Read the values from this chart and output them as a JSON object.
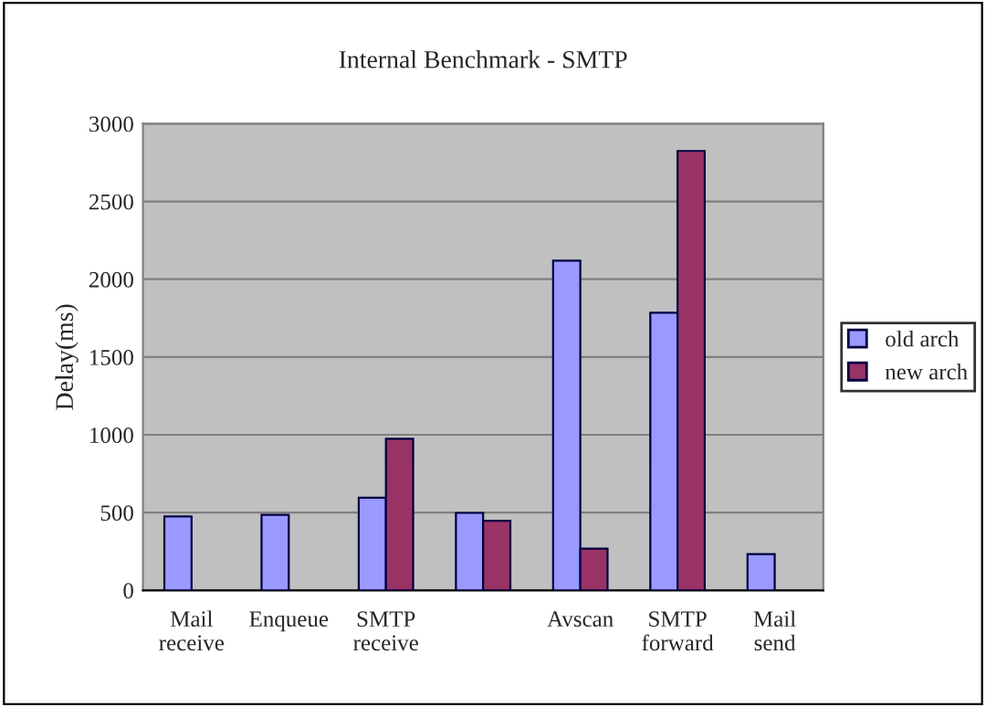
{
  "chart_data": {
    "type": "bar",
    "title": "Internal Benchmark - SMTP",
    "ylabel": "Delay(ms)",
    "categories": [
      "Mail\nreceive",
      "Enqueue",
      "SMTP\nreceive",
      null,
      "Avscan",
      "SMTP\nforward",
      "Mail\nsend"
    ],
    "series": [
      {
        "name": "old arch",
        "color": "#9999ff",
        "values": [
          475,
          486,
          595,
          498,
          2120,
          1785,
          233
        ]
      },
      {
        "name": "new arch",
        "color": "#993366",
        "values": [
          null,
          null,
          975,
          447,
          268,
          2825,
          null
        ]
      }
    ],
    "ylim": [
      0,
      3000
    ],
    "yticks": [
      0,
      500,
      1000,
      1500,
      2000,
      2500,
      3000
    ],
    "grid": "y",
    "legend": "right"
  }
}
